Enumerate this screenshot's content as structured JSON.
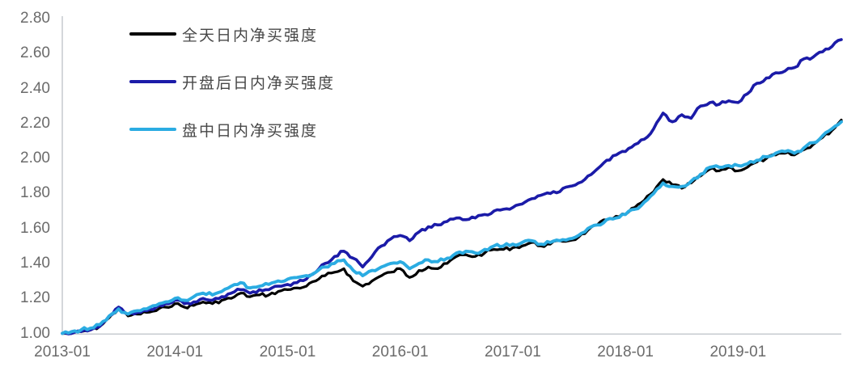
{
  "chart_data": {
    "type": "line",
    "title": "",
    "xlabel": "",
    "ylabel": "",
    "grid": false,
    "legend_position": "top-left",
    "ylim": [
      1.0,
      2.8
    ],
    "x": {
      "start": "2013-01",
      "end": "2019-12",
      "interval": "month"
    },
    "ytick_labels": [
      "1.00",
      "1.20",
      "1.40",
      "1.60",
      "1.80",
      "2.00",
      "2.20",
      "2.40",
      "2.60",
      "2.80"
    ],
    "xtick_labels": [
      "2013-01",
      "2014-01",
      "2015-01",
      "2016-01",
      "2017-01",
      "2018-01",
      "2019-01"
    ],
    "axis_line_color": "#c9cdd2",
    "tick_text_color": "#6b6b6b",
    "series": [
      {
        "name": "全天日内净买强度",
        "color": "#000000",
        "values": [
          1.0,
          1.0,
          1.01,
          1.02,
          1.04,
          1.09,
          1.14,
          1.1,
          1.11,
          1.12,
          1.13,
          1.15,
          1.17,
          1.15,
          1.16,
          1.18,
          1.17,
          1.19,
          1.2,
          1.23,
          1.21,
          1.22,
          1.22,
          1.24,
          1.25,
          1.26,
          1.27,
          1.3,
          1.33,
          1.35,
          1.37,
          1.3,
          1.27,
          1.3,
          1.33,
          1.35,
          1.37,
          1.32,
          1.36,
          1.38,
          1.37,
          1.4,
          1.44,
          1.45,
          1.44,
          1.46,
          1.48,
          1.48,
          1.49,
          1.5,
          1.52,
          1.5,
          1.51,
          1.53,
          1.53,
          1.55,
          1.59,
          1.62,
          1.65,
          1.67,
          1.68,
          1.72,
          1.76,
          1.81,
          1.88,
          1.85,
          1.83,
          1.86,
          1.9,
          1.94,
          1.93,
          1.95,
          1.93,
          1.95,
          1.98,
          2.0,
          2.02,
          2.03,
          2.02,
          2.05,
          2.08,
          2.12,
          2.16,
          2.22
        ]
      },
      {
        "name": "开盘后日内净买强度",
        "color": "#1b1ba8",
        "values": [
          1.0,
          1.0,
          1.01,
          1.02,
          1.04,
          1.1,
          1.15,
          1.11,
          1.12,
          1.13,
          1.15,
          1.17,
          1.19,
          1.17,
          1.18,
          1.2,
          1.19,
          1.21,
          1.23,
          1.25,
          1.23,
          1.25,
          1.25,
          1.27,
          1.28,
          1.29,
          1.31,
          1.35,
          1.4,
          1.44,
          1.47,
          1.43,
          1.38,
          1.44,
          1.5,
          1.54,
          1.56,
          1.53,
          1.58,
          1.61,
          1.62,
          1.64,
          1.66,
          1.65,
          1.66,
          1.68,
          1.7,
          1.71,
          1.72,
          1.74,
          1.77,
          1.79,
          1.8,
          1.81,
          1.84,
          1.86,
          1.9,
          1.94,
          1.99,
          2.02,
          2.04,
          2.08,
          2.11,
          2.17,
          2.26,
          2.21,
          2.25,
          2.23,
          2.3,
          2.32,
          2.31,
          2.33,
          2.32,
          2.37,
          2.43,
          2.46,
          2.49,
          2.5,
          2.52,
          2.57,
          2.58,
          2.61,
          2.64,
          2.68
        ]
      },
      {
        "name": "盘中日内净买强度",
        "color": "#2bace2",
        "values": [
          1.0,
          1.01,
          1.02,
          1.03,
          1.05,
          1.1,
          1.14,
          1.11,
          1.13,
          1.14,
          1.16,
          1.18,
          1.2,
          1.19,
          1.21,
          1.23,
          1.22,
          1.24,
          1.27,
          1.29,
          1.26,
          1.27,
          1.28,
          1.3,
          1.31,
          1.32,
          1.33,
          1.35,
          1.38,
          1.4,
          1.42,
          1.36,
          1.33,
          1.36,
          1.38,
          1.4,
          1.41,
          1.37,
          1.4,
          1.42,
          1.41,
          1.43,
          1.46,
          1.47,
          1.46,
          1.48,
          1.5,
          1.5,
          1.51,
          1.52,
          1.53,
          1.51,
          1.52,
          1.53,
          1.54,
          1.56,
          1.6,
          1.62,
          1.65,
          1.66,
          1.68,
          1.71,
          1.75,
          1.8,
          1.86,
          1.84,
          1.84,
          1.87,
          1.91,
          1.95,
          1.95,
          1.96,
          1.96,
          1.97,
          1.99,
          2.01,
          2.03,
          2.04,
          2.03,
          2.06,
          2.09,
          2.13,
          2.17,
          2.21
        ]
      }
    ]
  }
}
